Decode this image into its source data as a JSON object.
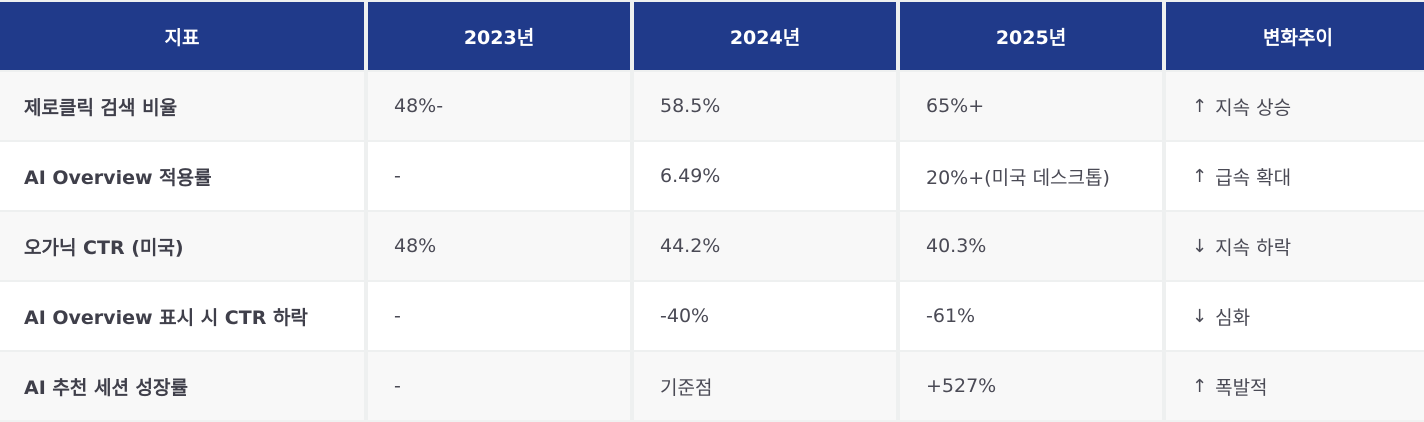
{
  "table": {
    "headers": [
      "지표",
      "2023년",
      "2024년",
      "2025년",
      "변화추이"
    ],
    "rows": [
      {
        "metric": "제로클릭 검색 비율",
        "y2023": "48%-",
        "y2024": "58.5%",
        "y2025": "65%+",
        "trend_arrow": "↑",
        "trend_text": "지속 상승"
      },
      {
        "metric": "AI Overview 적용률",
        "y2023": "-",
        "y2024": "6.49%",
        "y2025": "20%+(미국 데스크톱)",
        "trend_arrow": "↑",
        "trend_text": "급속 확대"
      },
      {
        "metric": "오가닉 CTR (미국)",
        "y2023": "48%",
        "y2024": "44.2%",
        "y2025": "40.3%",
        "trend_arrow": "↓",
        "trend_text": "지속 하락"
      },
      {
        "metric": "AI Overview 표시 시 CTR 하락",
        "y2023": "-",
        "y2024": "-40%",
        "y2025": "-61%",
        "trend_arrow": "↓",
        "trend_text": "심화"
      },
      {
        "metric": "AI 추천 세션 성장률",
        "y2023": "-",
        "y2024": "기준점",
        "y2025": "+527%",
        "trend_arrow": "↑",
        "trend_text": "폭발적"
      }
    ]
  },
  "colors": {
    "header_bg": "#203a8a",
    "header_text": "#ffffff",
    "row_alt_bg": "#f8f8f8",
    "row_bg": "#ffffff",
    "grid_line": "#eef0f0",
    "text": "#4a4a55"
  }
}
